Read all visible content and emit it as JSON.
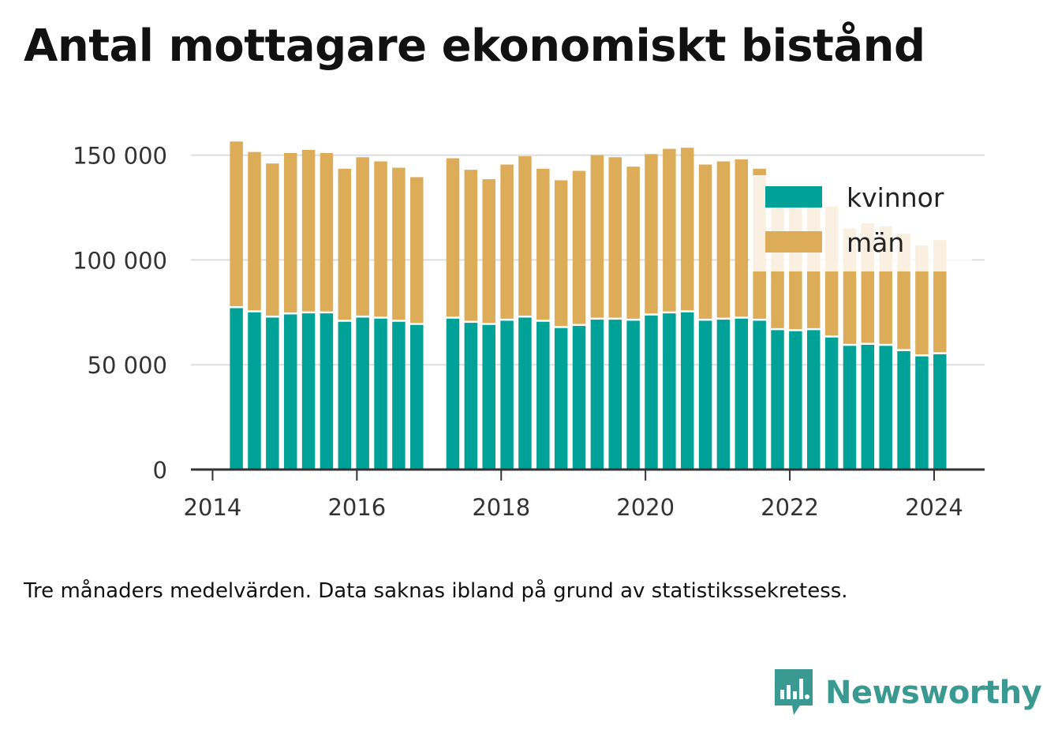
{
  "title": "Antal mottagare ekonomiskt bistånd",
  "note": "Tre månaders medelvärden. Data saknas ibland på grund av statistikssekretess.",
  "brand": {
    "name": "Newsworthy",
    "logo_icon": "bar-chart-speech-bubble-icon"
  },
  "colors": {
    "kvinnor": "#00a297",
    "man": "#dcac58",
    "grid": "#dddddd",
    "axis": "#333333",
    "brand": "#3a9a92"
  },
  "chart_data": {
    "type": "bar",
    "stacked": true,
    "x_unit": "year",
    "xticks": [
      2014,
      2016,
      2018,
      2020,
      2022,
      2024
    ],
    "xlim": [
      2013.7,
      2024.7
    ],
    "yticks": [
      {
        "value": 0,
        "label": "0"
      },
      {
        "value": 50000,
        "label": "50 000"
      },
      {
        "value": 100000,
        "label": "100 000"
      },
      {
        "value": 150000,
        "label": "150 000"
      }
    ],
    "ylim": [
      0,
      160000
    ],
    "grid": true,
    "legend": {
      "placement": "top-right"
    },
    "series": [
      {
        "name": "kvinnor",
        "color": "#00a297",
        "values": [
          77000,
          75000,
          72500,
          74000,
          74500,
          74500,
          70500,
          72500,
          72000,
          70500,
          69000,
          72000,
          70000,
          69000,
          71000,
          72500,
          70500,
          67500,
          68500,
          71500,
          71500,
          71000,
          73500,
          74500,
          75000,
          71000,
          71500,
          72000,
          71000,
          66500,
          66000,
          66500,
          63000,
          59000,
          59500,
          59000,
          56500,
          54000,
          55000
        ]
      },
      {
        "name": "män",
        "color": "#dcac58",
        "values": [
          79500,
          76500,
          73500,
          77000,
          78000,
          76500,
          73000,
          76500,
          75000,
          73500,
          70500,
          76500,
          73000,
          69500,
          74500,
          77000,
          73000,
          70500,
          74000,
          78500,
          77500,
          73500,
          77000,
          78500,
          78500,
          74500,
          75500,
          76000,
          72500,
          67500,
          68500,
          68500,
          62500,
          56000,
          58000,
          57000,
          56000,
          53000,
          54500
        ]
      }
    ],
    "x": [
      2014.33,
      2014.58,
      2014.83,
      2015.08,
      2015.33,
      2015.58,
      2015.83,
      2016.08,
      2016.33,
      2016.58,
      2016.83,
      2017.33,
      2017.58,
      2017.83,
      2018.08,
      2018.33,
      2018.58,
      2018.83,
      2019.08,
      2019.33,
      2019.58,
      2019.83,
      2020.08,
      2020.33,
      2020.58,
      2020.83,
      2021.08,
      2021.33,
      2021.58,
      2021.83,
      2022.08,
      2022.33,
      2022.58,
      2022.83,
      2023.08,
      2023.33,
      2023.58,
      2023.83,
      2024.08
    ]
  }
}
